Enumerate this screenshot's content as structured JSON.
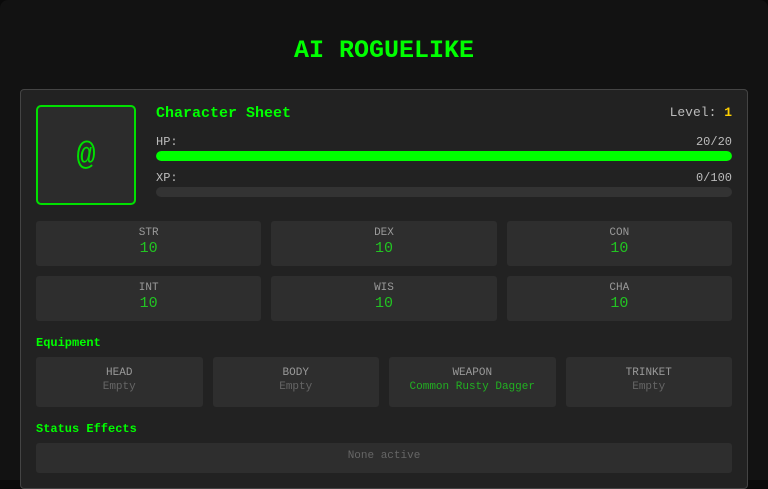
{
  "app": {
    "title": "AI ROGUELIKE"
  },
  "character": {
    "avatar_glyph": "@",
    "heading": "Character Sheet",
    "level_label": "Level:",
    "level": "1",
    "hp": {
      "label": "HP:",
      "text": "20/20",
      "current": 20,
      "max": 20
    },
    "xp": {
      "label": "XP:",
      "text": "0/100",
      "current": 0,
      "max": 100
    }
  },
  "stats": [
    {
      "name": "STR",
      "value": "10"
    },
    {
      "name": "DEX",
      "value": "10"
    },
    {
      "name": "CON",
      "value": "10"
    },
    {
      "name": "INT",
      "value": "10"
    },
    {
      "name": "WIS",
      "value": "10"
    },
    {
      "name": "CHA",
      "value": "10"
    }
  ],
  "equipment": {
    "heading": "Equipment",
    "slots": [
      {
        "name": "HEAD",
        "value": "Empty"
      },
      {
        "name": "BODY",
        "value": "Empty"
      },
      {
        "name": "WEAPON",
        "value": "Common Rusty Dagger"
      },
      {
        "name": "TRINKET",
        "value": "Empty"
      }
    ]
  },
  "status_effects": {
    "heading": "Status Effects",
    "text": "None active"
  },
  "colors": {
    "accent": "#00ff00",
    "level": "#ffd000",
    "panel": "#222222"
  }
}
